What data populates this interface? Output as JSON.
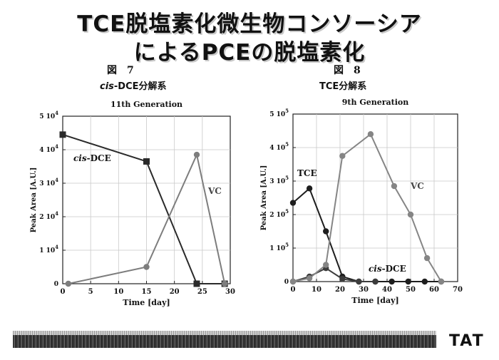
{
  "slide": {
    "title_line1": "TCE脱塩素化微生物コンソーシア",
    "title_line2": "によるPCEの脱塩素化",
    "logo": "TAT"
  },
  "figures": [
    {
      "number": "図　7",
      "caption_italic": "cis",
      "caption_rest": "-DCE分解系"
    },
    {
      "number": "図　8",
      "caption_italic": "",
      "caption_rest": "TCE分解系"
    }
  ],
  "chart_data": [
    {
      "type": "line",
      "title": "11th Generation",
      "xlabel": "Time [day]",
      "ylabel": "Peak Area [A.U.]",
      "xlim": [
        0,
        30
      ],
      "ylim": [
        0,
        50000
      ],
      "xticks": [
        0,
        5,
        10,
        15,
        20,
        25,
        30
      ],
      "xtick_labels": [
        "0",
        "5",
        "10",
        "15",
        "20",
        "25",
        "30"
      ],
      "yticks": [
        0,
        10000,
        20000,
        30000,
        40000,
        50000
      ],
      "ytick_labels": [
        {
          "base": "0",
          "exp": ""
        },
        {
          "base": "1 10",
          "exp": "4"
        },
        {
          "base": "2 10",
          "exp": "4"
        },
        {
          "base": "3 10",
          "exp": "4"
        },
        {
          "base": "4 10",
          "exp": "4"
        },
        {
          "base": "5 10",
          "exp": "4"
        }
      ],
      "grid": true,
      "series": [
        {
          "name": "cis-DCE",
          "name_italic": "cis",
          "name_rest": "-DCE",
          "marker": "square",
          "color": "#2a2a2a",
          "x": [
            0,
            15,
            24,
            29
          ],
          "y": [
            44500,
            36500,
            0,
            0
          ]
        },
        {
          "name": "VC",
          "name_italic": "",
          "name_rest": "VC",
          "marker": "circle",
          "color": "#7d7d7d",
          "x": [
            1,
            15,
            24,
            29
          ],
          "y": [
            0,
            5000,
            38500,
            0
          ]
        }
      ]
    },
    {
      "type": "line",
      "title": "9th Generation",
      "xlabel": "Time [day]",
      "ylabel": "Peak Area [A.U.]",
      "xlim": [
        0,
        70
      ],
      "ylim": [
        0,
        500000
      ],
      "xticks": [
        0,
        10,
        20,
        30,
        40,
        50,
        60,
        70
      ],
      "xtick_labels": [
        "0",
        "10",
        "20",
        "30",
        "40",
        "50",
        "60",
        "70"
      ],
      "yticks": [
        0,
        100000,
        200000,
        300000,
        400000,
        500000
      ],
      "ytick_labels": [
        {
          "base": "0",
          "exp": ""
        },
        {
          "base": "1 10",
          "exp": "5"
        },
        {
          "base": "2 10",
          "exp": "5"
        },
        {
          "base": "3 10",
          "exp": "5"
        },
        {
          "base": "4 10",
          "exp": "5"
        },
        {
          "base": "5 10",
          "exp": "5"
        }
      ],
      "grid": true,
      "series": [
        {
          "name": "TCE",
          "name_italic": "",
          "name_rest": "TCE",
          "marker": "circle",
          "color": "#1e1e1e",
          "x": [
            0,
            7,
            14,
            21,
            28,
            35,
            42,
            49,
            56,
            63
          ],
          "y": [
            235000,
            278000,
            150000,
            15000,
            0,
            0,
            0,
            0,
            0,
            0
          ]
        },
        {
          "name": "cis-DCE",
          "name_italic": "cis",
          "name_rest": "-DCE",
          "marker": "circle",
          "color": "#3c3c3c",
          "x": [
            0,
            7,
            14,
            21,
            28,
            35
          ],
          "y": [
            0,
            15000,
            40000,
            8000,
            0,
            0
          ]
        },
        {
          "name": "VC",
          "name_italic": "",
          "name_rest": "VC",
          "marker": "circle",
          "color": "#858585",
          "x": [
            0,
            7,
            14,
            21,
            33,
            43,
            50,
            57,
            63
          ],
          "y": [
            0,
            10000,
            50000,
            375000,
            440000,
            285000,
            200000,
            70000,
            0
          ]
        }
      ]
    }
  ]
}
